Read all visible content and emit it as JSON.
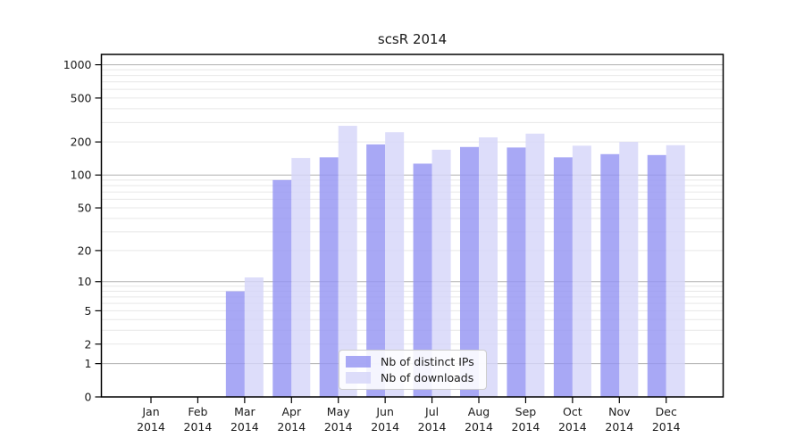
{
  "chart_data": {
    "type": "bar",
    "title": "scsR 2014",
    "categories": [
      "Jan",
      "Feb",
      "Mar",
      "Apr",
      "May",
      "Jun",
      "Jul",
      "Aug",
      "Sep",
      "Oct",
      "Nov",
      "Dec"
    ],
    "x_tick_year_line": "2014",
    "series": [
      {
        "name": "Nb of distinct IPs",
        "color": "#9595f3",
        "values": [
          0,
          0,
          8,
          90,
          145,
          190,
          127,
          180,
          178,
          145,
          155,
          152
        ]
      },
      {
        "name": "Nb of downloads",
        "color": "#d6d6f9",
        "values": [
          0,
          0,
          11,
          143,
          280,
          245,
          170,
          220,
          238,
          185,
          200,
          187
        ]
      }
    ],
    "yscale": "log1p",
    "yticks": [
      0,
      1,
      2,
      5,
      10,
      20,
      50,
      100,
      200,
      500,
      1000
    ],
    "ylim": [
      0,
      1240
    ],
    "grid": true,
    "legend_position": "lower center",
    "colors": {
      "major_grid": "#b0b0b0",
      "minor_grid": "#e7e7e7",
      "axis": "#000000",
      "text": "#1a1a1a"
    }
  }
}
